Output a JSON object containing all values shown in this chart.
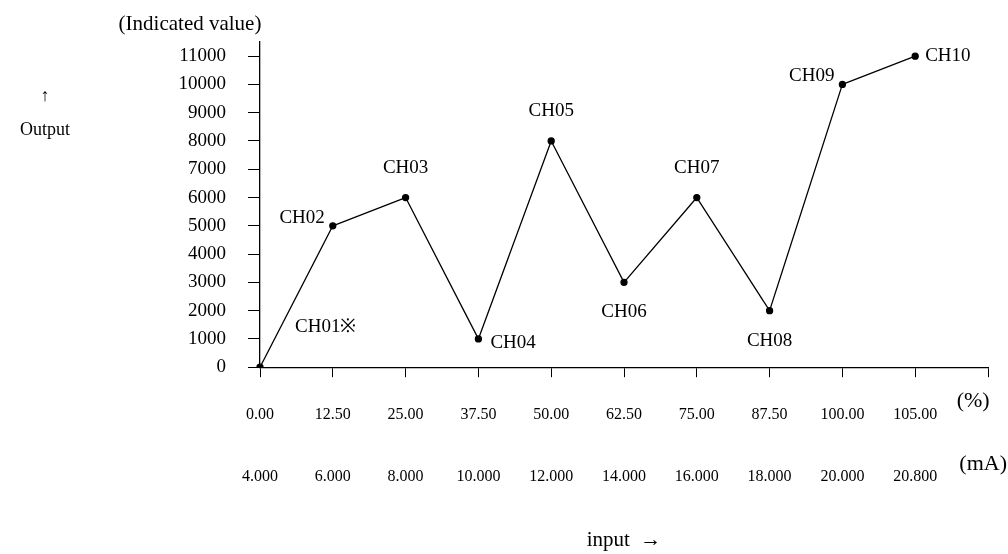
{
  "chart_data": {
    "type": "line",
    "title": "(Indicated value)",
    "categories": [
      "0.00\n4.000",
      "12.50\n6.000",
      "25.00\n8.000",
      "37.50\n10.000",
      "50.00\n12.000",
      "62.50\n14.000",
      "75.00\n16.000",
      "87.50\n18.000",
      "100.00\n20.000",
      "105.00\n20.800",
      null
    ],
    "series": [
      {
        "color": "#000000",
        "values": [
          0,
          5000,
          6000,
          1000,
          8000,
          3000,
          6000,
          2000,
          10000,
          11000,
          null
        ]
      }
    ],
    "ylim": [
      0,
      11500
    ],
    "yticks": [
      0,
      1000,
      2000,
      3000,
      4000,
      5000,
      6000,
      7000,
      8000,
      9000,
      10000,
      11000
    ],
    "grid": false,
    "legend": false,
    "marker": "circle",
    "line_style": "solid",
    "annotations": [
      "(%)",
      "(mA)",
      "↑\nOutput",
      "input  →",
      {
        "text": "CH01※",
        "x": "0.00\n4.000",
        "y": 0
      },
      {
        "text": "CH02",
        "x": "12.50\n6.000",
        "y": 5000
      },
      {
        "text": "CH03",
        "x": "25.00\n8.000",
        "y": 6000
      },
      {
        "text": "CH04",
        "x": "37.50\n10.000",
        "y": 1000
      },
      {
        "text": "CH05",
        "x": "50.00\n12.000",
        "y": 8000
      },
      {
        "text": "CH06",
        "x": "62.50\n14.000",
        "y": 3000
      },
      {
        "text": "CH07",
        "x": "75.00\n16.000",
        "y": 6000
      },
      {
        "text": "CH08",
        "x": "87.50\n18.000",
        "y": 2000
      },
      {
        "text": "CH09",
        "x": "100.00\n20.000",
        "y": 10000
      },
      {
        "text": "CH10",
        "x": "105.00\n20.800",
        "y": 11000
      }
    ]
  }
}
